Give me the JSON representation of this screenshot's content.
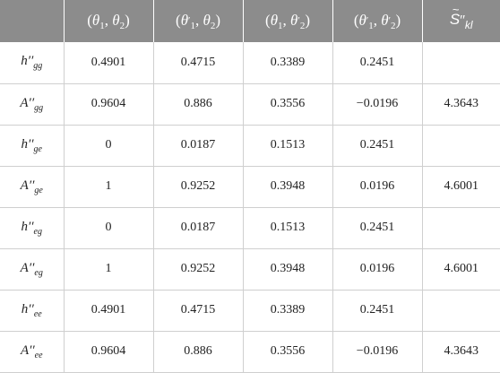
{
  "headers": [
    {
      "id": "label",
      "text": ""
    },
    {
      "id": "t1t2",
      "open": "(",
      "a": "θ",
      "a_sub": "1",
      "a_prime": "",
      "sep": ", ",
      "b": "θ",
      "b_sub": "2",
      "b_prime": "",
      "close": ")"
    },
    {
      "id": "t1pt2",
      "open": "(",
      "a": "θ",
      "a_sub": "1",
      "a_prime": "′",
      "sep": ", ",
      "b": "θ",
      "b_sub": "2",
      "b_prime": "",
      "close": ")"
    },
    {
      "id": "t1t2p",
      "open": "(",
      "a": "θ",
      "a_sub": "1",
      "a_prime": "",
      "sep": ", ",
      "b": "θ",
      "b_sub": "2",
      "b_prime": "′",
      "close": ")"
    },
    {
      "id": "t1pt2p",
      "open": "(",
      "a": "θ",
      "a_sub": "1",
      "a_prime": "′",
      "sep": ", ",
      "b": "θ",
      "b_sub": "2",
      "b_prime": "′",
      "close": ")"
    },
    {
      "id": "s_kl",
      "tilde": "~",
      "base": "S",
      "primes": "′′",
      "sub": "kl"
    }
  ],
  "rows": [
    {
      "id": "h-gg",
      "label": "h",
      "label_primes": "′′",
      "label_sub": "gg",
      "values": [
        "0.4901",
        "0.4715",
        "0.3389",
        "0.2451",
        ""
      ]
    },
    {
      "id": "a-gg",
      "label": "A",
      "label_primes": "′′",
      "label_sub": "gg",
      "values": [
        "0.9604",
        "0.886",
        "0.3556",
        "−0.0196",
        "4.3643"
      ]
    },
    {
      "id": "h-ge",
      "label": "h",
      "label_primes": "′′",
      "label_sub": "ge",
      "values": [
        "0",
        "0.0187",
        "0.1513",
        "0.2451",
        ""
      ]
    },
    {
      "id": "a-ge",
      "label": "A",
      "label_primes": "′′",
      "label_sub": "ge",
      "values": [
        "1",
        "0.9252",
        "0.3948",
        "0.0196",
        "4.6001"
      ]
    },
    {
      "id": "h-eg",
      "label": "h",
      "label_primes": "′′",
      "label_sub": "eg",
      "values": [
        "0",
        "0.0187",
        "0.1513",
        "0.2451",
        ""
      ]
    },
    {
      "id": "a-eg",
      "label": "A",
      "label_primes": "′′",
      "label_sub": "eg",
      "values": [
        "1",
        "0.9252",
        "0.3948",
        "0.0196",
        "4.6001"
      ]
    },
    {
      "id": "h-ee",
      "label": "h",
      "label_primes": "′′",
      "label_sub": "ee",
      "values": [
        "0.4901",
        "0.4715",
        "0.3389",
        "0.2451",
        ""
      ]
    },
    {
      "id": "a-ee",
      "label": "A",
      "label_primes": "′′",
      "label_sub": "ee",
      "values": [
        "0.9604",
        "0.886",
        "0.3556",
        "−0.0196",
        "4.3643"
      ]
    }
  ],
  "colors": {
    "header_bg": "#8c8c8c",
    "header_text": "#ffffff",
    "grid_line": "#cfcfcf",
    "body_text": "#222222"
  }
}
